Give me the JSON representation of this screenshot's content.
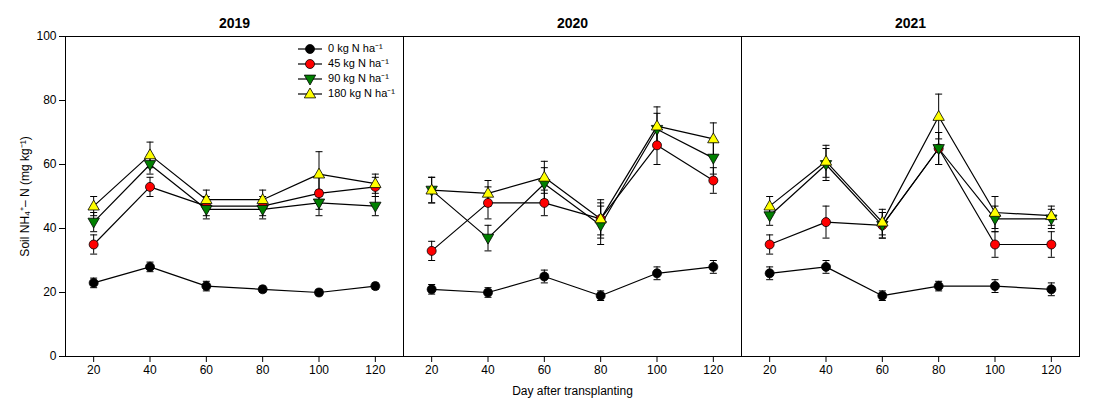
{
  "chart_data": [
    {
      "type": "line",
      "title": "2019",
      "x": [
        20,
        40,
        60,
        80,
        100,
        120
      ],
      "xlim": [
        10,
        130
      ],
      "xticks": [
        20,
        40,
        60,
        80,
        100,
        120
      ],
      "ylim": [
        0,
        100
      ],
      "yticks": [
        0,
        20,
        40,
        60,
        80,
        100
      ],
      "ylabel": "Soil NH₄⁺– N (mg kg⁻¹)",
      "legend": "upper right",
      "grid": false,
      "series": [
        {
          "name": "0 kg N ha⁻¹",
          "color": "black",
          "marker": "circle",
          "values": [
            23,
            28,
            22,
            21,
            20,
            22
          ],
          "errors": [
            1.5,
            1.5,
            1.5,
            1.0,
            1.0,
            1.0
          ]
        },
        {
          "name": "45 kg N ha⁻¹",
          "color": "red",
          "marker": "circle",
          "values": [
            35,
            53,
            47,
            47,
            51,
            53
          ],
          "errors": [
            3,
            3,
            3,
            3,
            5,
            3
          ]
        },
        {
          "name": "90 kg N ha⁻¹",
          "color": "green",
          "marker": "triangle-down",
          "values": [
            42,
            60,
            46,
            46,
            48,
            47
          ],
          "errors": [
            3,
            3,
            3,
            3,
            4,
            3
          ]
        },
        {
          "name": "180 kg N ha⁻¹",
          "color": "yellow",
          "marker": "triangle-up",
          "values": [
            47,
            63,
            49,
            49,
            57,
            54
          ],
          "errors": [
            3,
            4,
            3,
            3,
            7,
            3
          ]
        }
      ]
    },
    {
      "type": "line",
      "title": "2020",
      "x": [
        20,
        40,
        60,
        80,
        100,
        120
      ],
      "xlim": [
        10,
        130
      ],
      "xticks": [
        20,
        40,
        60,
        80,
        100,
        120
      ],
      "ylim": [
        0,
        100
      ],
      "yticks": [
        0,
        20,
        40,
        60,
        80,
        100
      ],
      "xlabel": "Day after transplanting",
      "tick_labels": "x",
      "grid": false,
      "series": [
        {
          "name": "0 kg N ha⁻¹",
          "color": "black",
          "marker": "circle",
          "values": [
            21,
            20,
            25,
            19,
            26,
            28
          ],
          "errors": [
            1.5,
            1.5,
            2,
            1.5,
            2,
            2
          ]
        },
        {
          "name": "45 kg N ha⁻¹",
          "color": "red",
          "marker": "circle",
          "values": [
            33,
            48,
            48,
            43,
            66,
            55
          ],
          "errors": [
            3,
            5,
            4,
            5,
            6,
            4
          ]
        },
        {
          "name": "90 kg N ha⁻¹",
          "color": "green",
          "marker": "triangle-down",
          "values": [
            52,
            37,
            54,
            41,
            71,
            62
          ],
          "errors": [
            4,
            4,
            5,
            6,
            5,
            5
          ]
        },
        {
          "name": "180 kg N ha⁻¹",
          "color": "yellow",
          "marker": "triangle-up",
          "values": [
            52,
            51,
            56,
            43,
            72,
            68
          ],
          "errors": [
            4,
            4,
            5,
            6,
            6,
            5
          ]
        }
      ]
    },
    {
      "type": "line",
      "title": "2021",
      "x": [
        20,
        40,
        60,
        80,
        100,
        120
      ],
      "xlim": [
        10,
        130
      ],
      "xticks": [
        20,
        40,
        60,
        80,
        100,
        120
      ],
      "ylim": [
        0,
        100
      ],
      "yticks": [
        0,
        20,
        40,
        60,
        80,
        100
      ],
      "tick_labels": "x",
      "grid": false,
      "series": [
        {
          "name": "0 kg N ha⁻¹",
          "color": "black",
          "marker": "circle",
          "values": [
            26,
            28,
            19,
            22,
            22,
            21
          ],
          "errors": [
            2,
            2,
            1.5,
            1.5,
            2,
            2
          ]
        },
        {
          "name": "45 kg N ha⁻¹",
          "color": "red",
          "marker": "circle",
          "values": [
            35,
            42,
            41,
            65,
            35,
            35
          ],
          "errors": [
            3,
            5,
            4,
            5,
            4,
            4
          ]
        },
        {
          "name": "90 kg N ha⁻¹",
          "color": "green",
          "marker": "triangle-down",
          "values": [
            44,
            60,
            41,
            65,
            43,
            43
          ],
          "errors": [
            3,
            5,
            4,
            5,
            4,
            3
          ]
        },
        {
          "name": "180 kg N ha⁻¹",
          "color": "yellow",
          "marker": "triangle-up",
          "values": [
            47,
            61,
            42,
            75,
            45,
            44
          ],
          "errors": [
            3,
            5,
            4,
            7,
            5,
            3
          ]
        }
      ]
    }
  ]
}
